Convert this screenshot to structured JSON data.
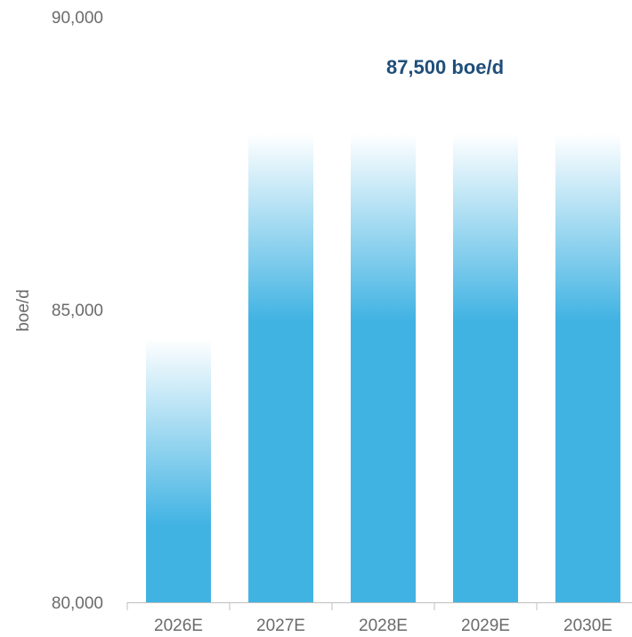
{
  "chart_data": {
    "type": "bar",
    "categories": [
      "2026E",
      "2027E",
      "2028E",
      "2029E",
      "2030E"
    ],
    "values": [
      84500,
      88000,
      88000,
      88000,
      88000
    ],
    "title": "",
    "xlabel": "",
    "ylabel": "boe/d",
    "ylim": [
      80000,
      90000
    ],
    "y_ticks": [
      80000,
      85000,
      90000
    ],
    "y_tick_labels": [
      "80,000",
      "85,000",
      "90,000"
    ],
    "annotation": "87,500 boe/d",
    "grid": false,
    "legend": "none",
    "colors": {
      "bar": "#41b3e3",
      "bar_fade": "#ffffff",
      "annotation": "#1f4e79",
      "text": "#6b6b6b",
      "axis": "#bfbfbf"
    }
  }
}
